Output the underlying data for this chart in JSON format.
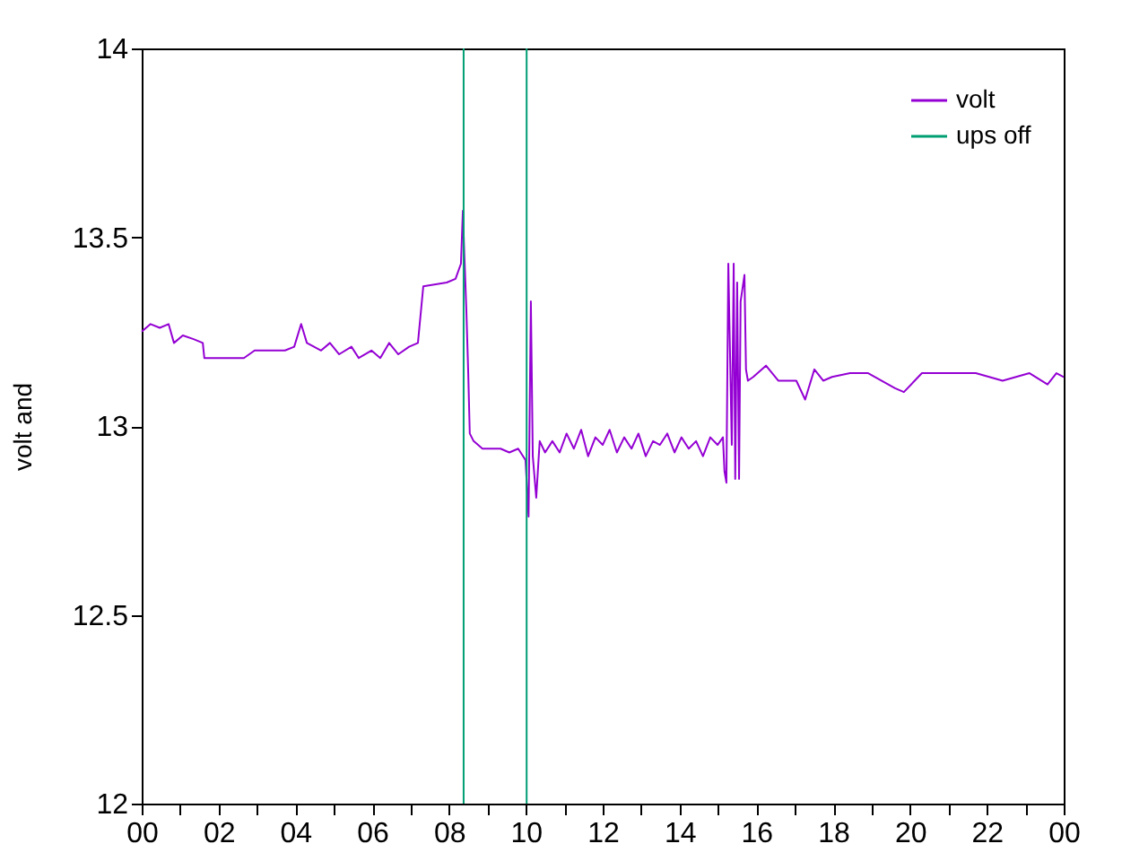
{
  "chart_data": {
    "type": "line",
    "ylabel": "volt and",
    "xlim": [
      0,
      24
    ],
    "ylim": [
      12,
      14
    ],
    "xticks": [
      {
        "value": 0,
        "label": "00"
      },
      {
        "value": 1,
        "label": null
      },
      {
        "value": 2,
        "label": "02"
      },
      {
        "value": 3,
        "label": null
      },
      {
        "value": 4,
        "label": "04"
      },
      {
        "value": 5,
        "label": null
      },
      {
        "value": 6,
        "label": "06"
      },
      {
        "value": 7,
        "label": null
      },
      {
        "value": 8,
        "label": "08"
      },
      {
        "value": 9,
        "label": null
      },
      {
        "value": 10,
        "label": "10"
      },
      {
        "value": 11,
        "label": null
      },
      {
        "value": 12,
        "label": "12"
      },
      {
        "value": 13,
        "label": null
      },
      {
        "value": 14,
        "label": "14"
      },
      {
        "value": 15,
        "label": null
      },
      {
        "value": 16,
        "label": "16"
      },
      {
        "value": 17,
        "label": null
      },
      {
        "value": 18,
        "label": "18"
      },
      {
        "value": 19,
        "label": null
      },
      {
        "value": 20,
        "label": "20"
      },
      {
        "value": 21,
        "label": null
      },
      {
        "value": 22,
        "label": "22"
      },
      {
        "value": 23,
        "label": null
      },
      {
        "value": 24,
        "label": "00"
      }
    ],
    "yticks": [
      12,
      12.5,
      13,
      13.5,
      14
    ],
    "grid": false,
    "legend": "top right",
    "marker": "none",
    "line_style": "solid",
    "series": [
      {
        "name": "volt",
        "color": "#9400d3",
        "x": [
          0,
          0.23,
          0.47,
          0.7,
          0.84,
          1.07,
          1.35,
          1.59,
          1.63,
          2.1,
          2.66,
          2.94,
          3.73,
          3.97,
          4.15,
          4.3,
          4.67,
          4.9,
          5.14,
          5.46,
          5.65,
          5.98,
          6.21,
          6.44,
          6.68,
          6.96,
          7.19,
          7.33,
          7.94,
          8.17,
          8.31,
          8.36,
          8.4,
          8.45,
          8.5,
          8.54,
          8.64,
          8.87,
          9.34,
          9.57,
          9.8,
          9.99,
          10.07,
          10.13,
          10.18,
          10.27,
          10.36,
          10.5,
          10.69,
          10.88,
          11.06,
          11.25,
          11.44,
          11.62,
          11.81,
          12.0,
          12.18,
          12.37,
          12.56,
          12.75,
          12.93,
          13.12,
          13.31,
          13.49,
          13.68,
          13.87,
          14.05,
          14.24,
          14.43,
          14.61,
          14.8,
          14.99,
          15.13,
          15.17,
          15.22,
          15.27,
          15.36,
          15.41,
          15.45,
          15.5,
          15.55,
          15.59,
          15.69,
          15.73,
          15.78,
          15.92,
          16.25,
          16.57,
          17.04,
          17.27,
          17.51,
          17.74,
          17.97,
          18.44,
          18.91,
          19.61,
          19.84,
          20.31,
          20.78,
          21.71,
          22.41,
          23.11,
          23.58,
          23.81,
          24
        ],
        "values": [
          13.25,
          13.27,
          13.26,
          13.27,
          13.22,
          13.24,
          13.23,
          13.22,
          13.18,
          13.18,
          13.18,
          13.2,
          13.2,
          13.21,
          13.27,
          13.22,
          13.2,
          13.22,
          13.19,
          13.21,
          13.18,
          13.2,
          13.18,
          13.22,
          13.19,
          13.21,
          13.22,
          13.37,
          13.38,
          13.39,
          13.43,
          13.57,
          13.45,
          13.31,
          13.14,
          12.98,
          12.96,
          12.94,
          12.94,
          12.93,
          12.94,
          12.91,
          12.76,
          13.33,
          12.92,
          12.81,
          12.96,
          12.93,
          12.96,
          12.93,
          12.98,
          12.94,
          12.99,
          12.92,
          12.97,
          12.95,
          12.99,
          12.93,
          12.97,
          12.94,
          12.98,
          12.92,
          12.96,
          12.95,
          12.98,
          12.93,
          12.97,
          12.94,
          12.96,
          12.92,
          12.97,
          12.95,
          12.97,
          12.88,
          12.85,
          13.43,
          12.95,
          13.43,
          12.86,
          13.38,
          12.86,
          13.33,
          13.4,
          13.15,
          13.12,
          13.13,
          13.16,
          13.12,
          13.12,
          13.07,
          13.15,
          13.12,
          13.13,
          13.14,
          13.14,
          13.1,
          13.09,
          13.14,
          13.14,
          13.14,
          13.12,
          13.14,
          13.11,
          13.14,
          13.13
        ]
      },
      {
        "name": "ups off",
        "color": "#009e73",
        "x": [
          8.38,
          8.38,
          9.2,
          10.02,
          10.02
        ],
        "values": [
          12,
          14,
          null,
          14,
          12
        ]
      }
    ]
  }
}
